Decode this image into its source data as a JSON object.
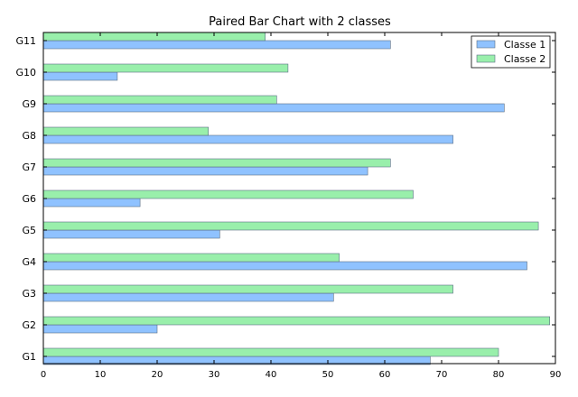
{
  "chart_data": {
    "type": "bar",
    "orientation": "horizontal",
    "title": "Paired Bar Chart with 2 classes",
    "xlabel": "",
    "ylabel": "",
    "categories": [
      "G1",
      "G2",
      "G3",
      "G4",
      "G5",
      "G6",
      "G7",
      "G8",
      "G9",
      "G10",
      "G11"
    ],
    "series": [
      {
        "name": "Classe 1",
        "color": "#8FC2FF",
        "values": [
          68,
          20,
          51,
          85,
          31,
          17,
          57,
          72,
          81,
          13,
          61
        ]
      },
      {
        "name": "Classe 2",
        "color": "#99EFAB",
        "values": [
          80,
          89,
          72,
          52,
          87,
          65,
          61,
          29,
          41,
          43,
          39
        ]
      }
    ],
    "xlim": [
      0,
      90
    ],
    "xticks": [
      0,
      10,
      20,
      30,
      40,
      50,
      60,
      70,
      80,
      90
    ],
    "grid": false,
    "legend_position": "top-right"
  }
}
